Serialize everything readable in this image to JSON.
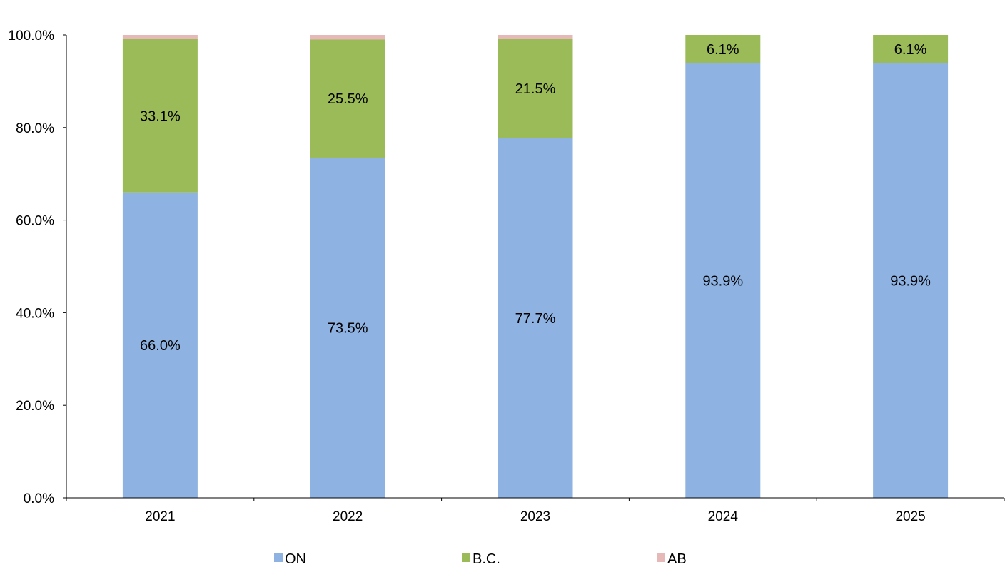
{
  "chart_data": {
    "type": "bar",
    "stacked": true,
    "categories": [
      "2021",
      "2022",
      "2023",
      "2024",
      "2025"
    ],
    "series": [
      {
        "name": "ON",
        "values": [
          66.0,
          73.5,
          77.7,
          93.9,
          93.9
        ],
        "color": "#8EB2E2",
        "labels": [
          "66.0%",
          "73.5%",
          "77.7%",
          "93.9%",
          "93.9%"
        ]
      },
      {
        "name": "B.C.",
        "values": [
          33.1,
          25.5,
          21.5,
          6.1,
          6.1
        ],
        "color": "#9BBB59",
        "labels": [
          "33.1%",
          "25.5%",
          "21.5%",
          "6.1%",
          "6.1%"
        ]
      },
      {
        "name": "AB",
        "values": [
          0.9,
          1.0,
          0.8,
          0.0,
          0.0
        ],
        "color": "#E6B9B8",
        "labels": [
          "",
          "",
          "",
          "",
          ""
        ]
      }
    ],
    "ylim": [
      0,
      100
    ],
    "yticks": [
      0,
      20,
      40,
      60,
      80,
      100
    ],
    "ytick_labels": [
      "0.0%",
      "20.0%",
      "40.0%",
      "60.0%",
      "80.0%",
      "100.0%"
    ],
    "title": "",
    "xlabel": "",
    "ylabel": "",
    "grid": false,
    "legend_position": "bottom"
  }
}
